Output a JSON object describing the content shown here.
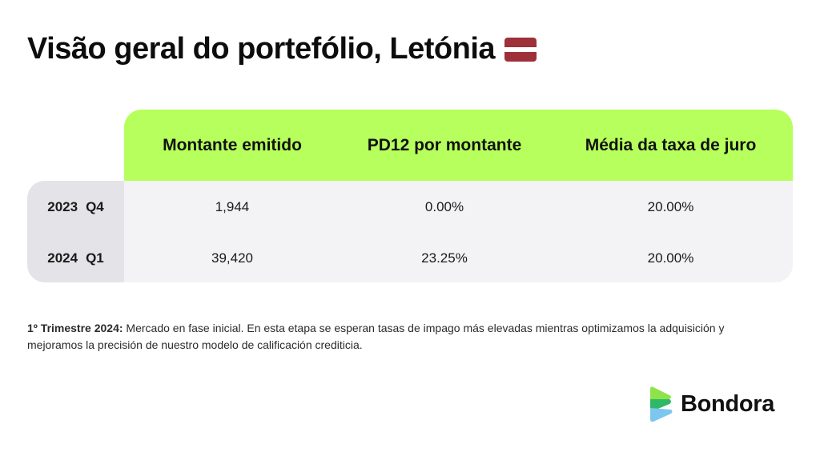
{
  "title": "Visão geral do portefólio, Letónia",
  "colors": {
    "header_bg": "#b6ff5c",
    "flag_maroon": "#9e3039",
    "flag_white": "#ffffff"
  },
  "table": {
    "headers": [
      "Montante emitido",
      "PD12 por montante",
      "Média da taxa de juro"
    ],
    "rows": [
      {
        "year": "2023",
        "quarter": "Q4",
        "values": [
          "1,944",
          "0.00%",
          "20.00%"
        ]
      },
      {
        "year": "2024",
        "quarter": "Q1",
        "values": [
          "39,420",
          "23.25%",
          "20.00%"
        ]
      }
    ]
  },
  "footnote": {
    "bold": "1º Trimestre 2024:",
    "text": " Mercado en fase inicial. En esta etapa se esperan tasas de impago más elevadas mientras optimizamos la adquisición y mejoramos la precisión de nuestro modelo de calificación crediticia."
  },
  "logo": {
    "text": "Bondora",
    "icon": "bondora-logo-icon",
    "colors": [
      "#8ee34a",
      "#2fb867",
      "#7cc7ee"
    ]
  }
}
